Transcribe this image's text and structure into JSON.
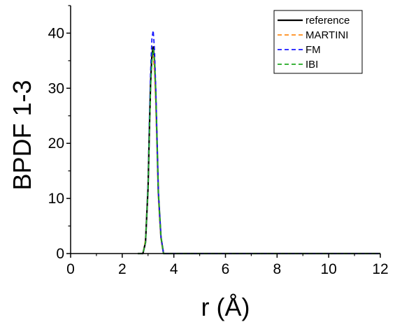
{
  "chart_data": {
    "type": "line",
    "title": "",
    "xlabel": "r (Å)",
    "ylabel": "BPDF 1-3",
    "xlim": [
      0,
      12
    ],
    "ylim": [
      0,
      45
    ],
    "xticks": [
      "0",
      "2",
      "4",
      "6",
      "8",
      "10",
      "12"
    ],
    "yticks": [
      "0",
      "10",
      "20",
      "30",
      "40"
    ],
    "grid": false,
    "legend_position": "top-right",
    "series": [
      {
        "name": "reference",
        "color": "#000000",
        "dash": "solid",
        "x": [
          2.6,
          2.8,
          2.9,
          3.0,
          3.05,
          3.1,
          3.15,
          3.2,
          3.25,
          3.3,
          3.35,
          3.4,
          3.5,
          3.6,
          3.8,
          12.0
        ],
        "y": [
          0,
          0,
          2,
          12,
          22,
          31,
          36,
          37.5,
          35,
          29,
          20,
          11,
          3,
          0,
          0,
          0
        ]
      },
      {
        "name": "MARTINI",
        "color": "#ff8c1a",
        "dash": "dashed",
        "x": [
          2.6,
          2.8,
          2.9,
          3.0,
          3.05,
          3.1,
          3.15,
          3.2,
          3.25,
          3.3,
          3.35,
          3.4,
          3.5,
          3.6,
          3.8,
          12.0
        ],
        "y": [
          0,
          0,
          2.5,
          13,
          23,
          31,
          35,
          36,
          33,
          27,
          18,
          10,
          2.5,
          0,
          0,
          0
        ]
      },
      {
        "name": "FM",
        "color": "#1a1aff",
        "dash": "dashed",
        "x": [
          2.6,
          2.8,
          2.9,
          3.0,
          3.05,
          3.1,
          3.15,
          3.2,
          3.25,
          3.3,
          3.35,
          3.4,
          3.5,
          3.6,
          3.8,
          12.0
        ],
        "y": [
          0,
          0,
          2,
          13,
          24,
          33,
          39,
          40.5,
          37,
          30,
          20,
          11,
          3,
          0,
          0,
          0
        ]
      },
      {
        "name": "IBI",
        "color": "#22aa22",
        "dash": "dashed",
        "x": [
          2.6,
          2.8,
          2.9,
          3.0,
          3.05,
          3.1,
          3.15,
          3.2,
          3.25,
          3.3,
          3.35,
          3.4,
          3.5,
          3.6,
          3.8,
          12.0
        ],
        "y": [
          0,
          0,
          2,
          12,
          22,
          30,
          35,
          37,
          35,
          29,
          20,
          11,
          3,
          0,
          0,
          0
        ]
      }
    ]
  }
}
